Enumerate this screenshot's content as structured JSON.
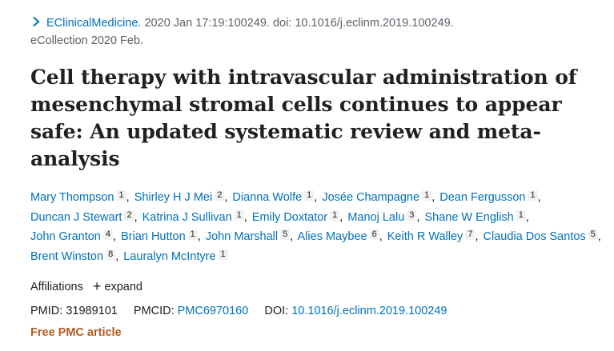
{
  "citation": {
    "journal": "EClinicalMedicine.",
    "details": " 2020 Jan 17:19:100249. doi: 10.1016/j.eclinm.2019.100249.",
    "ecollection": "eCollection 2020 Feb."
  },
  "title": "Cell therapy with intravascular administration of mesenchymal stromal cells continues to appear safe: An updated systematic review and meta-analysis",
  "authors": [
    {
      "name": "Mary Thompson",
      "aff": "1"
    },
    {
      "name": "Shirley H J Mei",
      "aff": "2"
    },
    {
      "name": "Dianna Wolfe",
      "aff": "1"
    },
    {
      "name": "Josée Champagne",
      "aff": "1"
    },
    {
      "name": "Dean Fergusson",
      "aff": "1"
    },
    {
      "name": "Duncan J Stewart",
      "aff": "2"
    },
    {
      "name": "Katrina J Sullivan",
      "aff": "1"
    },
    {
      "name": "Emily Doxtator",
      "aff": "1"
    },
    {
      "name": "Manoj Lalu",
      "aff": "3"
    },
    {
      "name": "Shane W English",
      "aff": "1"
    },
    {
      "name": "John Granton",
      "aff": "4"
    },
    {
      "name": "Brian Hutton",
      "aff": "1"
    },
    {
      "name": "John Marshall",
      "aff": "5"
    },
    {
      "name": "Alies Maybee",
      "aff": "6"
    },
    {
      "name": "Keith R Walley",
      "aff": "7"
    },
    {
      "name": "Claudia Dos Santos",
      "aff": "5"
    },
    {
      "name": "Brent Winston",
      "aff": "8"
    },
    {
      "name": "Lauralyn McIntyre",
      "aff": "1"
    }
  ],
  "affiliations": {
    "label": "Affiliations",
    "expand_label": "expand",
    "expand_icon": "plus-icon"
  },
  "ids": {
    "pmid_label": "PMID:",
    "pmid": "31989101",
    "pmcid_label": "PMCID:",
    "pmcid": "PMC6970160",
    "doi_label": "DOI:",
    "doi": "10.1016/j.eclinm.2019.100249"
  },
  "free_pmc": "Free PMC article",
  "colors": {
    "link": "#0071bc",
    "text": "#212121",
    "muted": "#5b616b",
    "free_pmc": "#b35a1f"
  }
}
